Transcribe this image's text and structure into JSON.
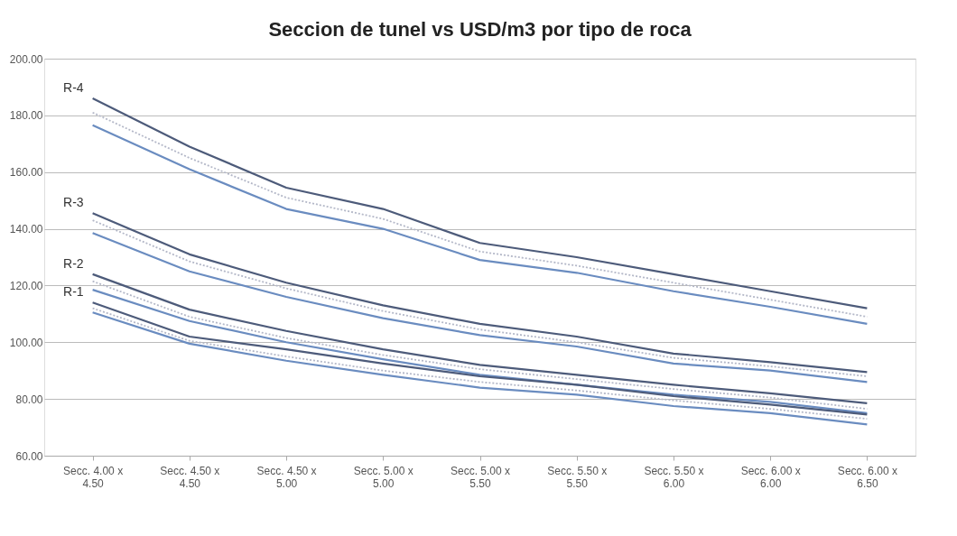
{
  "chart_data": {
    "type": "line",
    "title": "Seccion de tunel vs USD/m3 por tipo de roca",
    "categories": [
      "Secc. 4.00 x 4.50",
      "Secc. 4.50 x 4.50",
      "Secc. 4.50 x 5.00",
      "Secc. 5.00 x 5.00",
      "Secc. 5.00 x 5.50",
      "Secc. 5.50 x 5.50",
      "Secc. 5.50 x 6.00",
      "Secc. 6.00 x 6.00",
      "Secc. 6.00 x 6.50"
    ],
    "ylim": [
      60,
      200
    ],
    "yticks": [
      {
        "value": 60,
        "label": "60.00"
      },
      {
        "value": 80,
        "label": "80.00"
      },
      {
        "value": 100,
        "label": "100.00"
      },
      {
        "value": 120,
        "label": "120.00"
      },
      {
        "value": 140,
        "label": "140.00"
      },
      {
        "value": 160,
        "label": "160.00"
      },
      {
        "value": 180,
        "label": "180.00"
      },
      {
        "value": 200,
        "label": "200.00"
      }
    ],
    "grid": "y",
    "marker": "none",
    "series": [
      {
        "name": "R-4",
        "color": "#4d5b7a",
        "line_style": "solid",
        "values": [
          186,
          169,
          154.5,
          147,
          135,
          130,
          124,
          118,
          112
        ]
      },
      {
        "color": "#b4b8c8",
        "line_style": "dotted",
        "values": [
          181,
          165,
          151,
          143.5,
          132,
          127,
          121,
          115,
          109
        ]
      },
      {
        "color": "#6a8cc0",
        "line_style": "solid",
        "values": [
          176.5,
          161,
          147,
          140,
          129,
          124.5,
          118,
          112.5,
          106.5
        ]
      },
      {
        "name": "R-3",
        "color": "#4d5b7a",
        "line_style": "solid",
        "values": [
          145.5,
          131,
          121,
          113,
          106.5,
          102,
          96,
          93,
          89.5
        ]
      },
      {
        "color": "#b4b8c8",
        "line_style": "dotted",
        "values": [
          143,
          128.5,
          119,
          111,
          104.5,
          100,
          94.5,
          91.5,
          88
        ]
      },
      {
        "color": "#6a8cc0",
        "line_style": "solid",
        "values": [
          138.5,
          125,
          116,
          108.5,
          102.5,
          98.5,
          92.5,
          90,
          86
        ]
      },
      {
        "name": "R-2",
        "color": "#4d5b7a",
        "line_style": "solid",
        "values": [
          124,
          111.5,
          104,
          97.5,
          92,
          88.5,
          85,
          82,
          78.5
        ]
      },
      {
        "color": "#b4b8c8",
        "line_style": "dotted",
        "values": [
          121.5,
          109,
          101.5,
          95.5,
          90.5,
          87,
          83.5,
          80.5,
          76.5
        ]
      },
      {
        "color": "#6a8cc0",
        "line_style": "solid",
        "values": [
          118.5,
          107.5,
          100,
          94,
          88.5,
          85,
          81.5,
          79,
          75
        ]
      },
      {
        "name": "R-1",
        "color": "#4d5b7a",
        "line_style": "solid",
        "values": [
          114,
          102,
          97.5,
          92.5,
          88,
          85,
          81,
          78,
          74.5
        ]
      },
      {
        "color": "#b4b8c8",
        "line_style": "dotted",
        "values": [
          112,
          100.5,
          95,
          90,
          86,
          83,
          79.5,
          76.5,
          73
        ]
      },
      {
        "color": "#6a8cc0",
        "line_style": "solid",
        "values": [
          110.5,
          99.5,
          93.5,
          88.5,
          84,
          81.5,
          77.5,
          75,
          71
        ]
      }
    ]
  }
}
